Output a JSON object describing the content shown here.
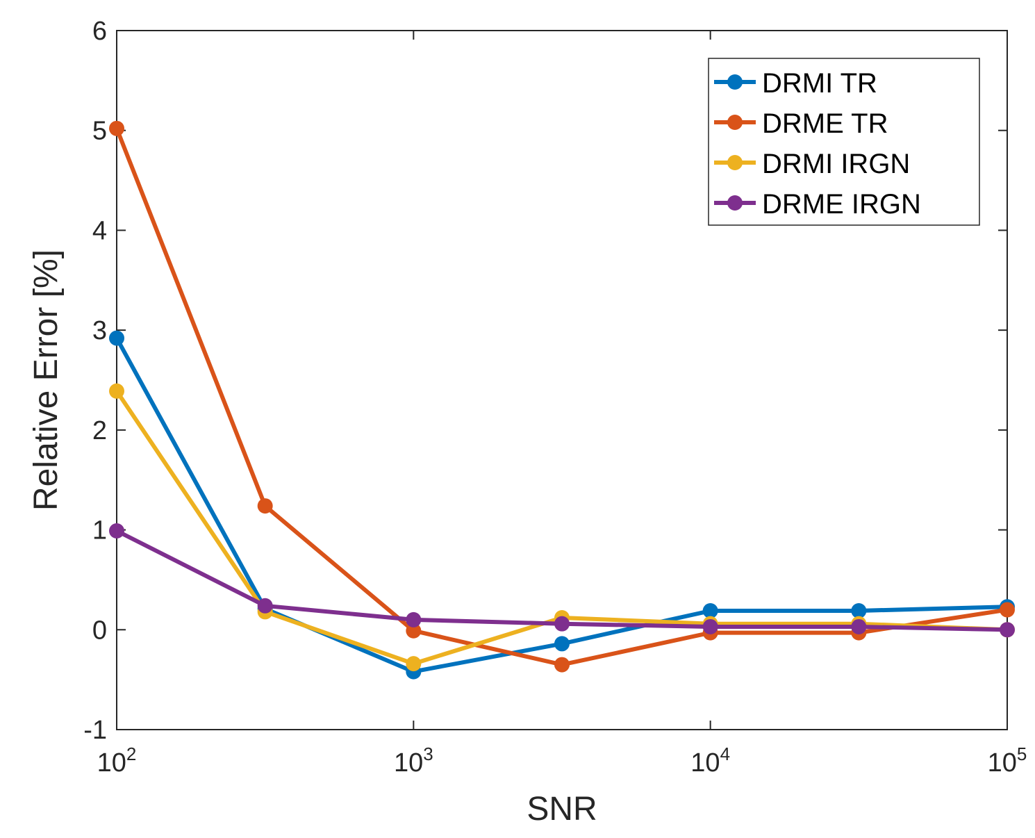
{
  "chart_data": {
    "type": "line",
    "title": "",
    "xlabel": "SNR",
    "ylabel": "Relative Error [%]",
    "xscale": "log",
    "xlim": [
      100,
      100000
    ],
    "ylim": [
      -1,
      6
    ],
    "x": [
      100,
      316.23,
      1000,
      3162.28,
      10000,
      31622.8,
      100000
    ],
    "xticks": [
      {
        "base": "10",
        "exp": "2",
        "value": 100
      },
      {
        "base": "10",
        "exp": "3",
        "value": 1000
      },
      {
        "base": "10",
        "exp": "4",
        "value": 10000
      },
      {
        "base": "10",
        "exp": "5",
        "value": 100000
      }
    ],
    "yticks": [
      {
        "label": "-1",
        "value": -1
      },
      {
        "label": "0",
        "value": 0
      },
      {
        "label": "1",
        "value": 1
      },
      {
        "label": "2",
        "value": 2
      },
      {
        "label": "3",
        "value": 3
      },
      {
        "label": "4",
        "value": 4
      },
      {
        "label": "5",
        "value": 5
      },
      {
        "label": "6",
        "value": 6
      }
    ],
    "legend_position": "top-right",
    "grid": false,
    "series": [
      {
        "name": "DRMI TR",
        "color": "#0072BD",
        "values": [
          2.92,
          0.21,
          -0.42,
          -0.14,
          0.19,
          0.19,
          0.23
        ]
      },
      {
        "name": "DRME TR",
        "color": "#D95319",
        "values": [
          5.02,
          1.24,
          -0.01,
          -0.35,
          -0.03,
          -0.03,
          0.2
        ]
      },
      {
        "name": "DRMI IRGN",
        "color": "#EDB120",
        "values": [
          2.39,
          0.18,
          -0.34,
          0.12,
          0.06,
          0.06,
          0.0
        ]
      },
      {
        "name": "DRME IRGN",
        "color": "#7E2F8E",
        "values": [
          0.99,
          0.24,
          0.1,
          0.06,
          0.03,
          0.03,
          0.0
        ]
      }
    ]
  }
}
